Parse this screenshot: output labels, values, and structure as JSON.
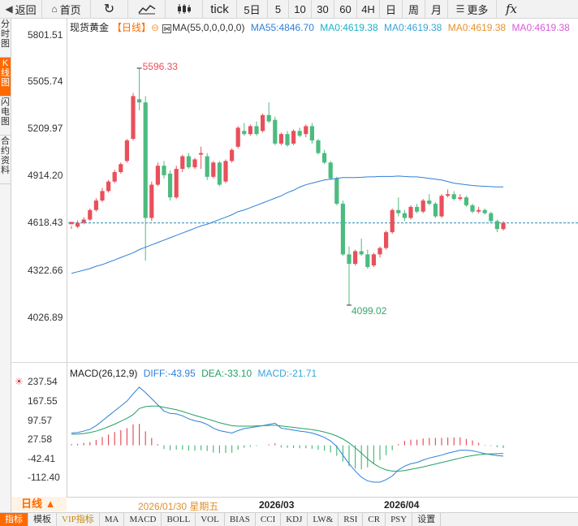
{
  "toolbar": {
    "back": "返回",
    "home": "首页",
    "tick": "tick",
    "periods": [
      "5日",
      "5",
      "10",
      "30",
      "60",
      "4H",
      "日",
      "周",
      "月"
    ],
    "more": "更多",
    "fx": "fx"
  },
  "side_tabs": [
    "分时图",
    "K线图",
    "闪电图",
    "合约资料"
  ],
  "active_side_tab": "K线图",
  "legend": {
    "instrument": "现货黄金",
    "period": "【日线】",
    "ma_label": "MA(55,0,0,0,0,0)",
    "ma55": "MA55:4846.70",
    "ma0_a": "MA0:4619.38",
    "ma0_b": "MA0:4619.38",
    "ma0_c": "MA0:4619.38",
    "ma0_d": "MA0:4619.38"
  },
  "price_axis": [
    "5801.51",
    "5505.74",
    "5209.97",
    "4914.20",
    "4618.43",
    "4322.66",
    "4026.89"
  ],
  "macd_axis": [
    "237.54",
    "167.55",
    "97.57",
    "27.58",
    "-42.41",
    "-112.40"
  ],
  "macd_legend": {
    "title": "MACD(26,12,9)",
    "diff": "DIFF:-43.95",
    "dea": "DEA:-33.10",
    "macd": "MACD:-21.71"
  },
  "annotations": {
    "high": "5596.33",
    "low": "4099.02"
  },
  "date_axis": {
    "period_label": "日线 ▲",
    "d1": "2026/01/30 星期五",
    "d2": "2026/03",
    "d3": "2026/04"
  },
  "bottom_tabs": [
    "指标",
    "模板",
    "VIP指标",
    "MA",
    "MACD",
    "BOLL",
    "VOL",
    "BIAS",
    "CCI",
    "KDJ",
    "LW&",
    "RSI",
    "CR",
    "PSY",
    "设置"
  ],
  "colors": {
    "up": "#e8505b",
    "down": "#4cbb7f",
    "ma55": "#2e7fd8",
    "dea": "#22a063",
    "accent": "#ff6a00"
  },
  "chart_data": {
    "type": "candlestick",
    "price_range": [
      4026.89,
      5801.51
    ],
    "last_price": 4618.43,
    "candles": [
      [
        4610,
        4625,
        4600,
        4580
      ],
      [
        4595,
        4620,
        4635,
        4585
      ],
      [
        4620,
        4640,
        4655,
        4610
      ],
      [
        4640,
        4700,
        4710,
        4630
      ],
      [
        4700,
        4760,
        4775,
        4690
      ],
      [
        4760,
        4820,
        4840,
        4750
      ],
      [
        4820,
        4880,
        4890,
        4810
      ],
      [
        4880,
        4940,
        4955,
        4870
      ],
      [
        4940,
        4990,
        5000,
        4930
      ],
      [
        5010,
        5140,
        5150,
        5000
      ],
      [
        5150,
        5420,
        5440,
        5140
      ],
      [
        5400,
        5380,
        5596,
        5330
      ],
      [
        5380,
        4650,
        5420,
        4380
      ],
      [
        4650,
        4860,
        4880,
        4630
      ],
      [
        4860,
        4980,
        5000,
        4850
      ],
      [
        4980,
        4920,
        5010,
        4900
      ],
      [
        4930,
        4780,
        4950,
        4760
      ],
      [
        4780,
        4960,
        4980,
        4770
      ],
      [
        4960,
        5040,
        5050,
        4940
      ],
      [
        5040,
        4970,
        5060,
        4960
      ],
      [
        4970,
        5020,
        5030,
        4960
      ],
      [
        5050,
        5060,
        5100,
        4960
      ],
      [
        5040,
        4910,
        5060,
        4890
      ],
      [
        4910,
        5000,
        5010,
        4900
      ],
      [
        5000,
        4860,
        5010,
        4850
      ],
      [
        4880,
        5010,
        5020,
        4870
      ],
      [
        5010,
        5080,
        5090,
        5000
      ],
      [
        5100,
        5220,
        5230,
        5090
      ],
      [
        5200,
        5180,
        5250,
        5170
      ],
      [
        5180,
        5230,
        5240,
        5170
      ],
      [
        5230,
        5180,
        5260,
        5170
      ],
      [
        5200,
        5300,
        5310,
        5190
      ],
      [
        5300,
        5260,
        5380,
        5250
      ],
      [
        5270,
        5120,
        5290,
        5110
      ],
      [
        5120,
        5180,
        5190,
        5110
      ],
      [
        5180,
        5110,
        5200,
        5100
      ],
      [
        5120,
        5200,
        5210,
        5110
      ],
      [
        5200,
        5170,
        5220,
        5160
      ],
      [
        5180,
        5230,
        5240,
        5160
      ],
      [
        5230,
        5140,
        5250,
        5120
      ],
      [
        5140,
        5060,
        5150,
        5050
      ],
      [
        5060,
        5000,
        5080,
        4990
      ],
      [
        5000,
        4900,
        5010,
        4890
      ],
      [
        4900,
        4740,
        4910,
        4730
      ],
      [
        4740,
        4420,
        4760,
        4410
      ],
      [
        4420,
        4360,
        4470,
        4099
      ],
      [
        4360,
        4440,
        4450,
        4350
      ],
      [
        4440,
        4420,
        4520,
        4410
      ],
      [
        4420,
        4340,
        4450,
        4330
      ],
      [
        4350,
        4420,
        4430,
        4340
      ],
      [
        4420,
        4460,
        4470,
        4400
      ],
      [
        4460,
        4560,
        4570,
        4450
      ],
      [
        4560,
        4700,
        4710,
        4550
      ],
      [
        4700,
        4680,
        4780,
        4660
      ],
      [
        4680,
        4650,
        4700,
        4630
      ],
      [
        4650,
        4720,
        4730,
        4640
      ],
      [
        4720,
        4690,
        4740,
        4680
      ],
      [
        4690,
        4760,
        4770,
        4680
      ],
      [
        4760,
        4740,
        4800,
        4730
      ],
      [
        4740,
        4660,
        4750,
        4650
      ],
      [
        4660,
        4790,
        4800,
        4650
      ],
      [
        4790,
        4800,
        4830,
        4780
      ],
      [
        4800,
        4770,
        4820,
        4760
      ],
      [
        4770,
        4780,
        4800,
        4760
      ],
      [
        4780,
        4730,
        4790,
        4720
      ],
      [
        4730,
        4690,
        4740,
        4680
      ],
      [
        4690,
        4700,
        4720,
        4680
      ],
      [
        4700,
        4680,
        4710,
        4670
      ],
      [
        4680,
        4630,
        4690,
        4620
      ],
      [
        4630,
        4580,
        4640,
        4560
      ],
      [
        4580,
        4620,
        4630,
        4570
      ]
    ],
    "ma55": [
      4300,
      4310,
      4320,
      4330,
      4345,
      4355,
      4370,
      4385,
      4400,
      4415,
      4430,
      4450,
      4465,
      4480,
      4495,
      4510,
      4525,
      4540,
      4555,
      4570,
      4585,
      4600,
      4610,
      4625,
      4640,
      4655,
      4670,
      4690,
      4700,
      4715,
      4730,
      4745,
      4760,
      4775,
      4790,
      4810,
      4825,
      4845,
      4860,
      4870,
      4880,
      4890,
      4895,
      4900,
      4905,
      4905,
      4905,
      4907,
      4910,
      4910,
      4912,
      4912,
      4912,
      4915,
      4912,
      4910,
      4910,
      4905,
      4900,
      4895,
      4890,
      4880,
      4870,
      4865,
      4860,
      4855,
      4852,
      4850,
      4848,
      4846,
      4846
    ],
    "macd_range": [
      -170,
      260
    ],
    "diff": [
      50,
      52,
      58,
      65,
      80,
      100,
      120,
      140,
      160,
      180,
      210,
      237,
      215,
      190,
      165,
      140,
      130,
      128,
      120,
      108,
      100,
      95,
      85,
      70,
      60,
      55,
      50,
      60,
      68,
      72,
      76,
      80,
      85,
      90,
      70,
      66,
      62,
      58,
      55,
      50,
      42,
      32,
      18,
      -5,
      -40,
      -75,
      -105,
      -130,
      -145,
      -150,
      -150,
      -140,
      -125,
      -100,
      -85,
      -75,
      -70,
      -60,
      -52,
      -46,
      -40,
      -32,
      -26,
      -20,
      -20,
      -22,
      -28,
      -34,
      -38,
      -42,
      -44
    ],
    "dea": [
      45,
      46,
      48,
      52,
      58,
      66,
      76,
      86,
      98,
      110,
      125,
      150,
      158,
      160,
      160,
      155,
      150,
      145,
      138,
      130,
      122,
      115,
      108,
      100,
      92,
      86,
      80,
      78,
      78,
      78,
      79,
      80,
      81,
      82,
      79,
      76,
      73,
      70,
      67,
      64,
      60,
      54,
      47,
      38,
      26,
      10,
      -10,
      -32,
      -55,
      -75,
      -90,
      -100,
      -105,
      -105,
      -103,
      -98,
      -93,
      -88,
      -82,
      -76,
      -70,
      -64,
      -58,
      -52,
      -46,
      -42,
      -38,
      -36,
      -35,
      -34,
      -33
    ],
    "hist": [
      5,
      6,
      10,
      13,
      22,
      34,
      44,
      54,
      62,
      70,
      85,
      87,
      57,
      30,
      5,
      -15,
      -20,
      -17,
      -18,
      -22,
      -22,
      -20,
      -23,
      -30,
      -32,
      -31,
      -30,
      -18,
      -10,
      -6,
      -3,
      0,
      4,
      8,
      -9,
      -10,
      -11,
      -12,
      -12,
      -14,
      -18,
      -22,
      -29,
      -43,
      -66,
      -85,
      -95,
      -98,
      -90,
      -75,
      -60,
      -40,
      -20,
      5,
      18,
      23,
      23,
      28,
      30,
      30,
      30,
      32,
      32,
      32,
      26,
      20,
      10,
      2,
      -3,
      -8,
      -11
    ]
  }
}
